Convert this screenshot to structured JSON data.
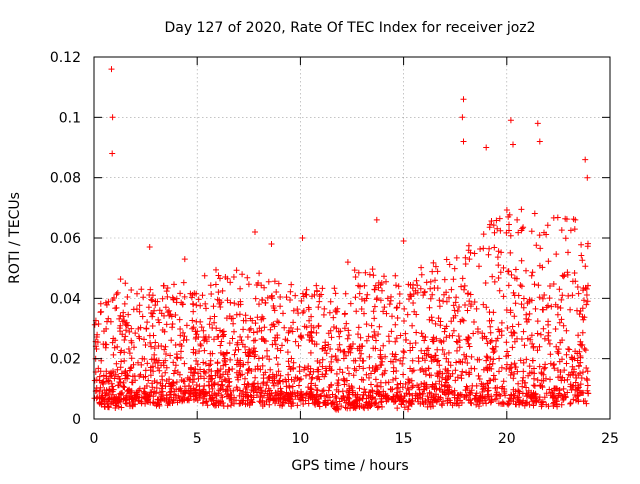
{
  "chart_data": {
    "type": "scatter",
    "title": "Day 127 of 2020, Rate Of TEC Index for receiver joz2",
    "xlabel": "GPS time / hours",
    "ylabel": "ROTI / TECUs",
    "xlim": [
      0,
      25
    ],
    "ylim": [
      0,
      0.12
    ],
    "xticks": [
      0,
      5,
      10,
      15,
      20,
      25
    ],
    "xtick_labels": [
      "0",
      "5",
      "10",
      "15",
      "20",
      "25"
    ],
    "yticks": [
      0,
      0.02,
      0.04,
      0.06,
      0.08,
      0.1,
      0.12
    ],
    "ytick_labels": [
      "0",
      "0.02",
      "0.04",
      "0.06",
      "0.08",
      "0.1",
      "0.12"
    ],
    "grid": true,
    "marker": "+",
    "series": [
      {
        "name": "joz2",
        "color": "#ff0000",
        "envelope_note": "Dense point cloud over 0-24 h; per-hour typical range and peak values estimated from the plot",
        "envelope": {
          "x": [
            0,
            1,
            2,
            3,
            4,
            5,
            6,
            7,
            8,
            9,
            10,
            11,
            12,
            13,
            14,
            15,
            16,
            17,
            18,
            19,
            20,
            21,
            22,
            23,
            24
          ],
          "low": [
            0.006,
            0.005,
            0.006,
            0.006,
            0.006,
            0.007,
            0.006,
            0.006,
            0.006,
            0.006,
            0.006,
            0.006,
            0.004,
            0.005,
            0.006,
            0.005,
            0.006,
            0.006,
            0.006,
            0.006,
            0.006,
            0.006,
            0.006,
            0.006,
            0.007
          ],
          "high": [
            0.035,
            0.045,
            0.045,
            0.045,
            0.045,
            0.045,
            0.05,
            0.05,
            0.05,
            0.045,
            0.045,
            0.045,
            0.045,
            0.05,
            0.05,
            0.045,
            0.05,
            0.055,
            0.06,
            0.065,
            0.07,
            0.07,
            0.065,
            0.07,
            0.065
          ]
        },
        "peaks": {
          "x": [
            0.85,
            0.9,
            0.88,
            2.7,
            4.4,
            7.8,
            8.6,
            10.1,
            12.3,
            13.7,
            15.0,
            17.9,
            17.85,
            17.9,
            19.0,
            20.2,
            20.3,
            21.5,
            21.6,
            23.8,
            23.9
          ],
          "y": [
            0.116,
            0.1,
            0.088,
            0.057,
            0.053,
            0.062,
            0.058,
            0.06,
            0.052,
            0.066,
            0.059,
            0.106,
            0.1,
            0.092,
            0.09,
            0.099,
            0.091,
            0.098,
            0.092,
            0.086,
            0.08
          ]
        }
      }
    ]
  }
}
